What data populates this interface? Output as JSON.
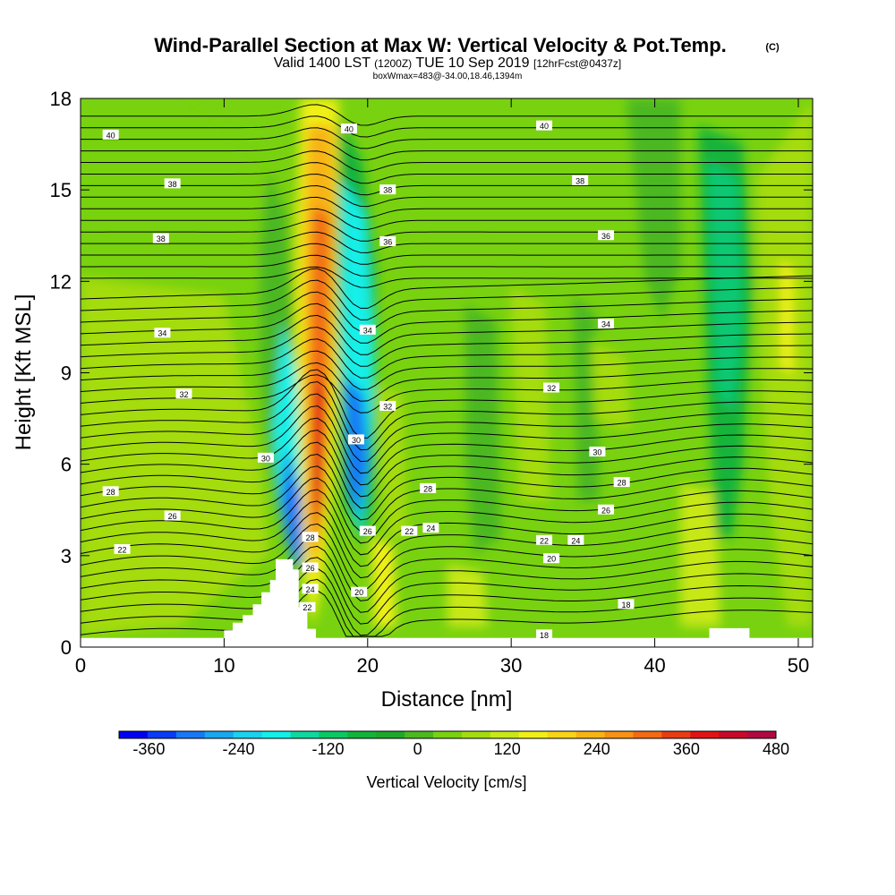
{
  "title": {
    "main": "Wind-Parallel Section at Max W: Vertical Velocity & Pot.Temp.",
    "main_mark": "(C)",
    "line2_a": "Valid 1400 LST",
    "line2_b": "(1200Z)",
    "line2_c": "TUE 10 Sep 2019",
    "line2_d": "[12hrFcst@0437z]",
    "line3": "boxWmax=483@-34.00,18.46,1394m"
  },
  "chart_data": {
    "type": "heatmap",
    "xlabel": "Distance [nm]",
    "ylabel": "Height [Kft MSL]",
    "xlim": [
      0,
      51
    ],
    "ylim": [
      0,
      18
    ],
    "xticks": [
      0,
      10,
      20,
      30,
      40,
      50
    ],
    "yticks": [
      0,
      3,
      6,
      9,
      12,
      15,
      18
    ],
    "colorbar": {
      "label": "Vertical Velocity [cm/s]",
      "tick_labels": [
        "-360",
        "-240",
        "-120",
        "0",
        "120",
        "240",
        "360",
        "480"
      ],
      "tick_values": [
        -360,
        -240,
        -120,
        0,
        120,
        240,
        360,
        480
      ],
      "range": [
        -400,
        480
      ],
      "colors": [
        "#0000f2",
        "#0a3cf5",
        "#1878f5",
        "#18a8f0",
        "#1ad2ee",
        "#12f0e8",
        "#0ed8a0",
        "#0ac864",
        "#12b43a",
        "#1ea82a",
        "#4cb820",
        "#78d210",
        "#a4dc10",
        "#c8e818",
        "#f0f018",
        "#f8d418",
        "#f8b414",
        "#f89214",
        "#f26a14",
        "#e83c14",
        "#e01414",
        "#c80a28",
        "#b00840"
      ]
    },
    "contour_variable": "Potential temperature (C)",
    "contour_labels": [
      {
        "text": "40",
        "x": 2.1,
        "y": 16.8
      },
      {
        "text": "38",
        "x": 6.4,
        "y": 15.2
      },
      {
        "text": "38",
        "x": 5.6,
        "y": 13.4
      },
      {
        "text": "34",
        "x": 5.7,
        "y": 10.3
      },
      {
        "text": "32",
        "x": 7.2,
        "y": 8.3
      },
      {
        "text": "30",
        "x": 12.9,
        "y": 6.2
      },
      {
        "text": "28",
        "x": 2.1,
        "y": 5.1
      },
      {
        "text": "26",
        "x": 6.4,
        "y": 4.3
      },
      {
        "text": "22",
        "x": 2.9,
        "y": 3.2
      },
      {
        "text": "40",
        "x": 18.7,
        "y": 17.0
      },
      {
        "text": "38",
        "x": 21.4,
        "y": 15.0
      },
      {
        "text": "36",
        "x": 21.4,
        "y": 13.3
      },
      {
        "text": "34",
        "x": 20.0,
        "y": 10.4
      },
      {
        "text": "32",
        "x": 21.4,
        "y": 7.9
      },
      {
        "text": "30",
        "x": 19.2,
        "y": 6.8
      },
      {
        "text": "28",
        "x": 16.0,
        "y": 3.6
      },
      {
        "text": "26",
        "x": 20.0,
        "y": 3.8
      },
      {
        "text": "26",
        "x": 16.0,
        "y": 2.6
      },
      {
        "text": "24",
        "x": 16.0,
        "y": 1.9
      },
      {
        "text": "22",
        "x": 15.8,
        "y": 1.3
      },
      {
        "text": "20",
        "x": 19.4,
        "y": 1.8
      },
      {
        "text": "28",
        "x": 24.2,
        "y": 5.2
      },
      {
        "text": "22",
        "x": 22.9,
        "y": 3.8
      },
      {
        "text": "24",
        "x": 24.4,
        "y": 3.9
      },
      {
        "text": "40",
        "x": 32.3,
        "y": 17.1
      },
      {
        "text": "38",
        "x": 34.8,
        "y": 15.3
      },
      {
        "text": "36",
        "x": 36.6,
        "y": 13.5
      },
      {
        "text": "34",
        "x": 36.6,
        "y": 10.6
      },
      {
        "text": "32",
        "x": 32.8,
        "y": 8.5
      },
      {
        "text": "30",
        "x": 36.0,
        "y": 6.4
      },
      {
        "text": "28",
        "x": 37.7,
        "y": 5.4
      },
      {
        "text": "26",
        "x": 36.6,
        "y": 4.5
      },
      {
        "text": "22",
        "x": 32.3,
        "y": 3.5
      },
      {
        "text": "24",
        "x": 34.5,
        "y": 3.5
      },
      {
        "text": "20",
        "x": 32.8,
        "y": 2.9
      },
      {
        "text": "18",
        "x": 38.0,
        "y": 1.4
      },
      {
        "text": "18",
        "x": 32.3,
        "y": 0.4
      }
    ],
    "terrain": [
      {
        "x": 0.0,
        "y": 0.3
      },
      {
        "x": 10.0,
        "y": 0.3
      },
      {
        "x": 10.0,
        "y": 0.55
      },
      {
        "x": 10.6,
        "y": 0.55
      },
      {
        "x": 10.6,
        "y": 0.8
      },
      {
        "x": 11.3,
        "y": 0.8
      },
      {
        "x": 11.3,
        "y": 1.05
      },
      {
        "x": 12.0,
        "y": 1.05
      },
      {
        "x": 12.0,
        "y": 1.4
      },
      {
        "x": 12.6,
        "y": 1.4
      },
      {
        "x": 12.6,
        "y": 1.8
      },
      {
        "x": 13.2,
        "y": 1.8
      },
      {
        "x": 13.2,
        "y": 2.2
      },
      {
        "x": 13.6,
        "y": 2.2
      },
      {
        "x": 13.6,
        "y": 2.88
      },
      {
        "x": 14.8,
        "y": 2.88
      },
      {
        "x": 14.8,
        "y": 2.55
      },
      {
        "x": 15.2,
        "y": 2.55
      },
      {
        "x": 15.2,
        "y": 1.3
      },
      {
        "x": 15.8,
        "y": 1.3
      },
      {
        "x": 15.8,
        "y": 0.6
      },
      {
        "x": 16.4,
        "y": 0.6
      },
      {
        "x": 16.4,
        "y": 0.3
      },
      {
        "x": 43.8,
        "y": 0.3
      },
      {
        "x": 43.8,
        "y": 0.62
      },
      {
        "x": 46.6,
        "y": 0.62
      },
      {
        "x": 46.6,
        "y": 0.3
      },
      {
        "x": 51.0,
        "y": 0.3
      }
    ]
  }
}
